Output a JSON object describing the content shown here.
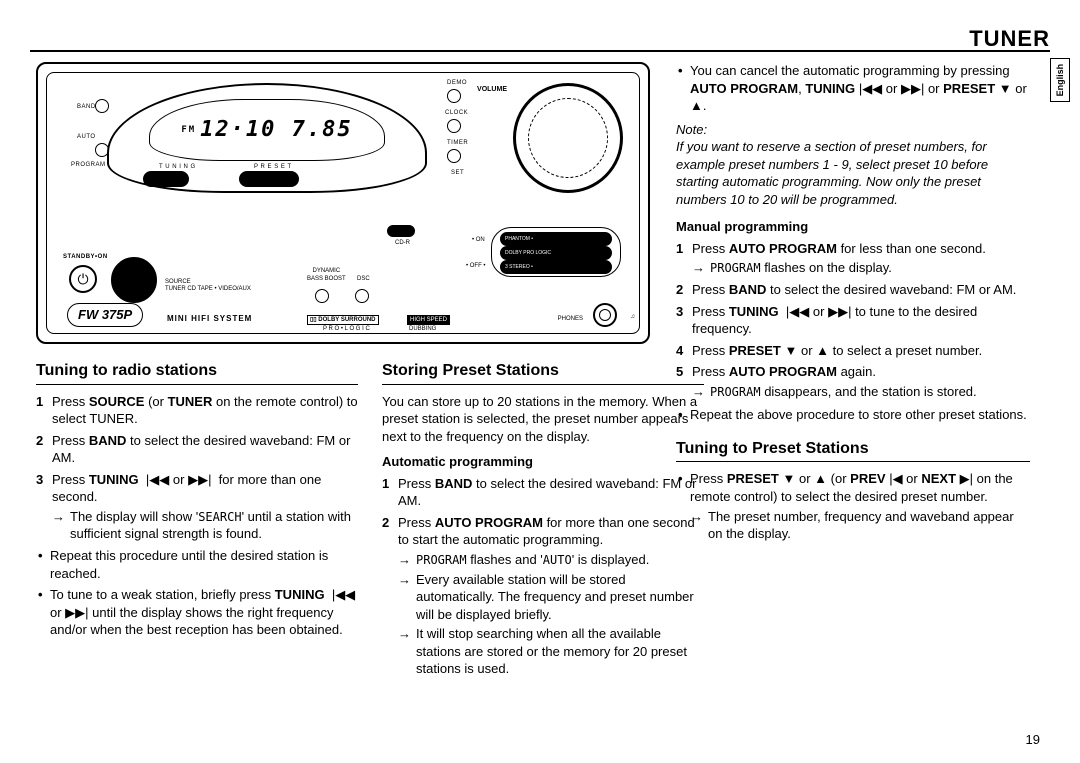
{
  "header": {
    "title": "TUNER",
    "lang_tab": "English",
    "page_number": "19"
  },
  "device": {
    "model": "FW 375P",
    "subtitle": "MINI HIFI SYSTEM",
    "lcd_prefix": "FM",
    "lcd_value": "12·10 7.85",
    "volume_label": "VOLUME",
    "labels": {
      "demo": "DEMO",
      "clock": "CLOCK",
      "timer": "TIMER",
      "set": "SET",
      "band": "BAND",
      "tuning": "T U N I N G",
      "preset": "P R E S E T",
      "standby": "STANDBY•ON",
      "source": "SOURCE",
      "sources_list": "TUNER  CD  TAPE • VIDEO/AUX",
      "dynamic": "DYNAMIC",
      "bassboost": "BASS BOOST",
      "dsc": "DSC",
      "cdr": "CD-R",
      "on": "• ON",
      "off": "• OFF •",
      "phantom": "PHANTOM •",
      "dpl": "DOLBY PRO LOGIC",
      "stereo3": "3 STEREO •",
      "dolby": "DOLBY SURROUND",
      "prologic": "P R O • L O G I C",
      "highspeed": "HIGH SPEED",
      "dubbing": "DUBBING",
      "phones": "PHONES",
      "auto": "AUTO",
      "program": "PROGRAM"
    }
  },
  "col1": {
    "heading": "Tuning to radio stations",
    "steps": [
      {
        "n": "1",
        "html": "Press <b>SOURCE</b> (or <b>TUNER</b> on the remote control) to select TUNER."
      },
      {
        "n": "2",
        "html": "Press <b>BAND</b> to select the desired waveband: FM or AM."
      },
      {
        "n": "3",
        "html": "Press <b>TUNING</b>&nbsp; <span class='sym'>|◀◀ or ▶▶|</span>&nbsp; for more than one second.",
        "arrow": "The display will show '<span class='smallcaps'>SEARCH</span>' until a station with sufficient signal strength is found."
      }
    ],
    "bullets": [
      {
        "html": "Repeat this procedure until the desired station is reached."
      },
      {
        "html": "To tune to a weak station, briefly press <b>TUNING</b>&nbsp; <span class='sym'>|◀◀</span> or <span class='sym'>▶▶|</span> until the display shows the right frequency and/or when the best reception has been obtained."
      }
    ]
  },
  "col2": {
    "heading": "Storing Preset Stations",
    "intro": "You can store up to 20 stations in the memory. When a preset station is selected, the preset number appears next to the frequency on the display.",
    "auto_heading": "Automatic programming",
    "auto_steps": [
      {
        "n": "1",
        "html": "Press <b>BAND</b> to select the desired waveband: FM or AM."
      },
      {
        "n": "2",
        "html": "Press <b>AUTO PROGRAM</b> for more than one second to start the automatic programming.",
        "arrows": [
          "<span class='smallcaps'>PROGRAM</span> flashes and '<span class='smallcaps'>AUTO</span>' is displayed.",
          "Every available station will be stored automatically. The frequency and preset number will be displayed briefly.",
          "It will stop searching when all the available stations are stored or the memory for 20 preset stations is used."
        ]
      }
    ]
  },
  "col3top": {
    "cancel_bullet": "You can cancel the automatic programming by pressing <b>AUTO PROGRAM</b>, <b>TUNING</b> <span class='sym'>|◀◀ or ▶▶|</span> or <b>PRESET</b> <span class='sym'>▼</span> or <span class='sym'>▲</span>.",
    "note_label": "Note:",
    "note_body": "If you want to reserve a section of preset numbers, for example preset numbers 1 - 9, select preset 10 before starting automatic programming. Now only the preset numbers 10 to 20 will be programmed.",
    "manual_heading": "Manual programming",
    "manual_steps": [
      {
        "n": "1",
        "html": "Press <b>AUTO PROGRAM</b> for less than one second.",
        "arrow": "<span class='smallcaps'>PROGRAM</span> flashes on the display."
      },
      {
        "n": "2",
        "html": "Press <b>BAND</b> to select the desired waveband: FM or AM."
      },
      {
        "n": "3",
        "html": "Press <b>TUNING</b>&nbsp; <span class='sym'>|◀◀ or ▶▶|</span> to tune to the desired frequency."
      },
      {
        "n": "4",
        "html": "Press <b>PRESET</b> <span class='sym'>▼</span> or <span class='sym'>▲</span> to select a preset number."
      },
      {
        "n": "5",
        "html": "Press <b>AUTO PROGRAM</b> again.",
        "arrow": "<span class='smallcaps'>PROGRAM</span> disappears, and the station is stored."
      }
    ],
    "repeat_bullet": "Repeat the above procedure to store other preset stations."
  },
  "col3bottom": {
    "heading": "Tuning to Preset Stations",
    "bullet": "Press <b>PRESET</b> <span class='sym'>▼</span> or <span class='sym'>▲</span> (or <b>PREV</b> <span class='sym'>|◀</span> or <b>NEXT</b> <span class='sym'>▶|</span> on the remote control) to select the desired preset number.",
    "arrow": "The preset number, frequency and waveband appear on the display."
  }
}
